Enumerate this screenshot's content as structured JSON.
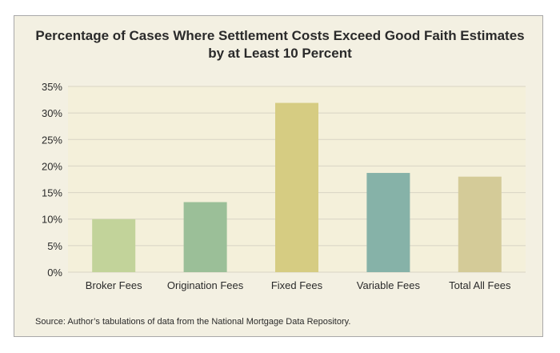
{
  "chart_data": {
    "type": "bar",
    "title_lines": [
      "Percentage of Cases Where Settlement Costs Exceed Good Faith Estimates",
      "by at Least 10 Percent"
    ],
    "categories": [
      "Broker Fees",
      "Origination Fees",
      "Fixed Fees",
      "Variable Fees",
      "Total All Fees"
    ],
    "values": [
      10.0,
      13.2,
      31.9,
      18.7,
      18.0
    ],
    "bar_colors": [
      "#c2d39a",
      "#9bbf98",
      "#d6cc82",
      "#86b2a8",
      "#d4cb98"
    ],
    "ylim": [
      0,
      35
    ],
    "yticks": [
      0,
      5,
      10,
      15,
      20,
      25,
      30,
      35
    ],
    "ytick_labels": [
      "0%",
      "5%",
      "10%",
      "15%",
      "20%",
      "25%",
      "30%",
      "35%"
    ],
    "grid": true,
    "plot_background": "#f4f0da",
    "grid_color": "#d8d4c4"
  },
  "source": "Source:  Author’s tabulations of data from the National Mortgage Data Repository."
}
